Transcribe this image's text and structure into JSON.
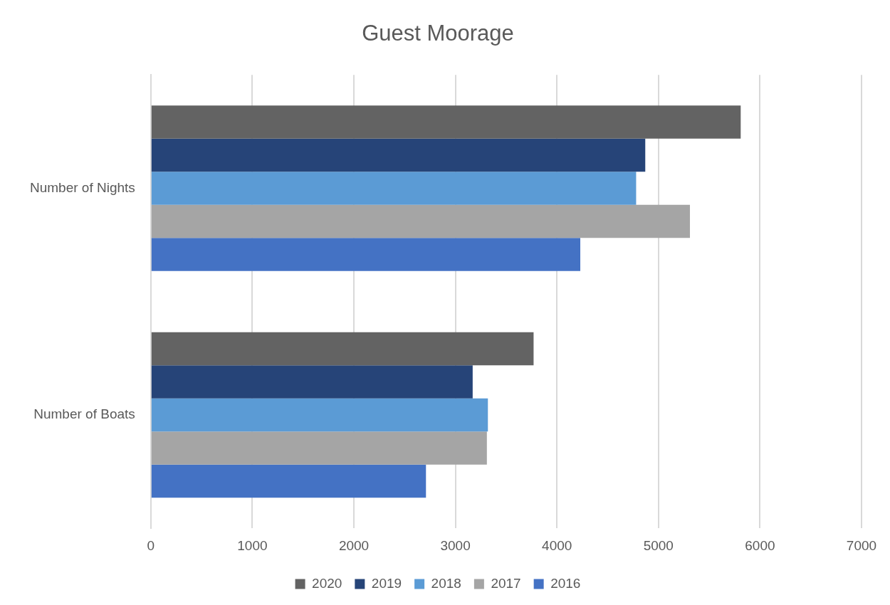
{
  "chart_data": {
    "type": "bar",
    "orientation": "horizontal",
    "title": "Guest Moorage",
    "categories": [
      "Number of Nights",
      "Number of Boats"
    ],
    "series": [
      {
        "name": "2020",
        "color": "#636363",
        "values": [
          5810,
          3770
        ]
      },
      {
        "name": "2019",
        "color": "#264478",
        "values": [
          4870,
          3170
        ]
      },
      {
        "name": "2018",
        "color": "#5b9bd5",
        "values": [
          4780,
          3320
        ]
      },
      {
        "name": "2017",
        "color": "#a5a5a5",
        "values": [
          5310,
          3310
        ]
      },
      {
        "name": "2016",
        "color": "#4472c4",
        "values": [
          4230,
          2710
        ]
      }
    ],
    "xlim": [
      0,
      7000
    ],
    "xticks": [
      0,
      1000,
      2000,
      3000,
      4000,
      5000,
      6000,
      7000
    ],
    "grid": "x",
    "legend": "bottom"
  }
}
